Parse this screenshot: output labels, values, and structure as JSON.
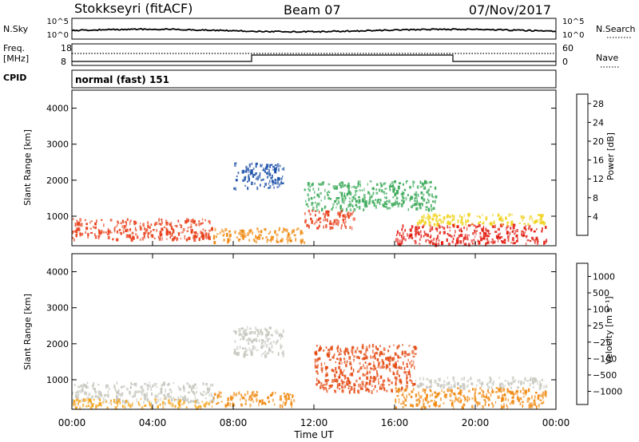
{
  "header": {
    "station": "Stokkseyri (fitACF)",
    "beam": "Beam 07",
    "date": "07/Nov/2017"
  },
  "nsky_panel": {
    "left_label": "N.Sky",
    "right_label": "N.Search",
    "left_ticks": [
      "10^5",
      "10^0"
    ],
    "right_ticks": [
      "10^5",
      "10^0"
    ]
  },
  "freq_panel": {
    "left_label_1": "Freq.",
    "left_label_2": "[MHz]",
    "right_label": "Nave",
    "left_ticks": [
      "18",
      "8"
    ],
    "right_ticks": [
      "60",
      "0"
    ]
  },
  "cpid": {
    "label": "CPID",
    "value": "normal (fast) 151"
  },
  "chart_data": [
    {
      "type": "heatmap",
      "title": "Power",
      "ylabel": "Slant Range [km]",
      "xlabel": "",
      "ylim": [
        180,
        4500
      ],
      "yticks": [
        "1000",
        "2000",
        "3000",
        "4000"
      ],
      "colorbar_label": "Power [dB]",
      "colorbar_ticks": [
        "4",
        "8",
        "12",
        "16",
        "20",
        "24",
        "28"
      ],
      "colorbar_colors": [
        "#0a0ae6",
        "#1b4fa8",
        "#2f7d4e",
        "#3caa5a",
        "#f0d21e",
        "#f08a12",
        "#e21b10"
      ],
      "regions": [
        {
          "x": [
            0.0,
            7.0
          ],
          "y": [
            380,
            950
          ],
          "intensity": "high",
          "color": "#e8401a"
        },
        {
          "x": [
            7.0,
            11.5
          ],
          "y": [
            300,
            700
          ],
          "intensity": "medium",
          "color": "#f08a12"
        },
        {
          "x": [
            11.5,
            14.0
          ],
          "y": [
            700,
            1200
          ],
          "intensity": "high",
          "color": "#e8401a"
        },
        {
          "x": [
            11.5,
            18.0
          ],
          "y": [
            1200,
            2000
          ],
          "intensity": "medium",
          "color": "#3caa5a"
        },
        {
          "x": [
            16.0,
            23.5
          ],
          "y": [
            250,
            800
          ],
          "intensity": "high",
          "color": "#e21b10"
        },
        {
          "x": [
            17.0,
            23.5
          ],
          "y": [
            800,
            1100
          ],
          "intensity": "medium",
          "color": "#f0d21e"
        },
        {
          "x": [
            8.0,
            10.5
          ],
          "y": [
            1800,
            2500
          ],
          "intensity": "low",
          "color": "#1b4fa8"
        }
      ]
    },
    {
      "type": "heatmap",
      "title": "Velocity",
      "ylabel": "Slant Range [km]",
      "xlabel": "Time UT",
      "ylim": [
        180,
        4500
      ],
      "yticks": [
        "1000",
        "2000",
        "3000",
        "4000"
      ],
      "xticks": [
        "00:00",
        "04:00",
        "08:00",
        "12:00",
        "16:00",
        "20:00",
        "00:00"
      ],
      "colorbar_label": "Velocity [m s⁻¹]",
      "colorbar_ticks": [
        "1000",
        "500",
        "100",
        "25",
        "−25",
        "−100",
        "−500",
        "−1000"
      ],
      "colorbar_colors": [
        "#1f3ea8",
        "#2b6b9b",
        "#2f8a4a",
        "#5cc23c",
        "#bdbdbd",
        "#f5c21e",
        "#f08a12",
        "#e44a12",
        "#e21b10"
      ],
      "regions": [
        {
          "x": [
            0.0,
            7.0
          ],
          "y": [
            380,
            950
          ],
          "value": "~0",
          "color": "#c8c8c0"
        },
        {
          "x": [
            0.0,
            7.0
          ],
          "y": [
            250,
            500
          ],
          "value": "-100",
          "color": "#f5a51e"
        },
        {
          "x": [
            7.0,
            11.0
          ],
          "y": [
            300,
            700
          ],
          "value": "-100",
          "color": "#f08a12"
        },
        {
          "x": [
            8.0,
            10.5
          ],
          "y": [
            1700,
            2500
          ],
          "value": "~0",
          "color": "#c8c8c0"
        },
        {
          "x": [
            12.0,
            17.0
          ],
          "y": [
            700,
            2000
          ],
          "value": "-500",
          "color": "#e44a12"
        },
        {
          "x": [
            16.0,
            23.5
          ],
          "y": [
            250,
            800
          ],
          "value": "-100",
          "color": "#f08a12"
        },
        {
          "x": [
            17.0,
            23.5
          ],
          "y": [
            800,
            1100
          ],
          "value": "~0",
          "color": "#c8c8c0"
        }
      ]
    }
  ]
}
